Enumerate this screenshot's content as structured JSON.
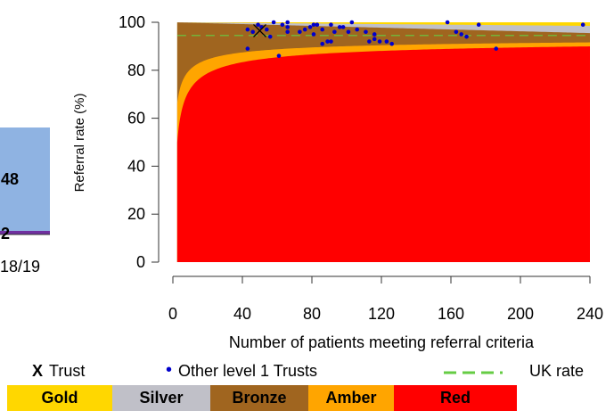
{
  "chart_data": [
    {
      "type": "bar",
      "note": "partially visible stacked bar (left panel, cropped)",
      "categories": [
        "18/19"
      ],
      "segment_labels": [
        "48",
        "2"
      ],
      "colors": {
        "main": "#8fb3e2",
        "thin": "#7030a0"
      }
    },
    {
      "type": "area",
      "title": "",
      "xlabel": "Number of patients meeting referral criteria",
      "ylabel": "Referral rate (%)",
      "xlim": [
        0,
        240
      ],
      "ylim": [
        0,
        100
      ],
      "xticks": [
        0,
        40,
        80,
        120,
        160,
        200,
        240
      ],
      "yticks": [
        0,
        20,
        40,
        60,
        80,
        100
      ],
      "x_tick_labels": [
        "0",
        "40",
        "80",
        "120",
        "160",
        "200",
        "240"
      ],
      "y_tick_labels": [
        "0",
        "20",
        "40",
        "60",
        "80",
        "100"
      ],
      "bands": [
        {
          "name": "Gold",
          "color": "#ffd700"
        },
        {
          "name": "Silver",
          "color": "#c0c0c8"
        },
        {
          "name": "Bronze",
          "color": "#a0651f"
        },
        {
          "name": "Amber",
          "color": "#ffa500"
        },
        {
          "name": "Red",
          "color": "#ff0000"
        }
      ],
      "uk_rate": 94.5,
      "trust": {
        "x": 50,
        "y": 96.5
      },
      "other_trusts": [
        [
          43,
          89
        ],
        [
          43,
          97
        ],
        [
          46,
          96
        ],
        [
          49,
          99
        ],
        [
          51,
          98
        ],
        [
          54,
          97
        ],
        [
          56,
          94
        ],
        [
          58,
          100
        ],
        [
          61,
          86
        ],
        [
          63,
          99
        ],
        [
          66,
          100
        ],
        [
          66,
          98
        ],
        [
          66,
          96
        ],
        [
          73,
          96
        ],
        [
          76,
          97
        ],
        [
          79,
          98
        ],
        [
          81,
          99
        ],
        [
          81,
          95
        ],
        [
          83,
          99
        ],
        [
          86,
          91
        ],
        [
          86,
          97
        ],
        [
          89,
          92
        ],
        [
          91,
          92
        ],
        [
          91,
          99
        ],
        [
          93,
          96
        ],
        [
          96,
          98
        ],
        [
          98,
          98
        ],
        [
          101,
          96
        ],
        [
          103,
          100
        ],
        [
          106,
          97
        ],
        [
          111,
          96
        ],
        [
          113,
          92
        ],
        [
          116,
          95
        ],
        [
          116,
          93
        ],
        [
          119,
          92
        ],
        [
          123,
          92
        ],
        [
          126,
          91
        ],
        [
          158,
          100
        ],
        [
          163,
          96
        ],
        [
          166,
          95
        ],
        [
          169,
          94
        ],
        [
          176,
          99
        ],
        [
          186,
          89
        ],
        [
          236,
          99
        ]
      ],
      "legend": {
        "trust_marker": "X",
        "trust_label": "Trust",
        "others_marker": "•",
        "others_label": "Other level 1 Trusts",
        "uk_label": "UK rate"
      }
    }
  ]
}
